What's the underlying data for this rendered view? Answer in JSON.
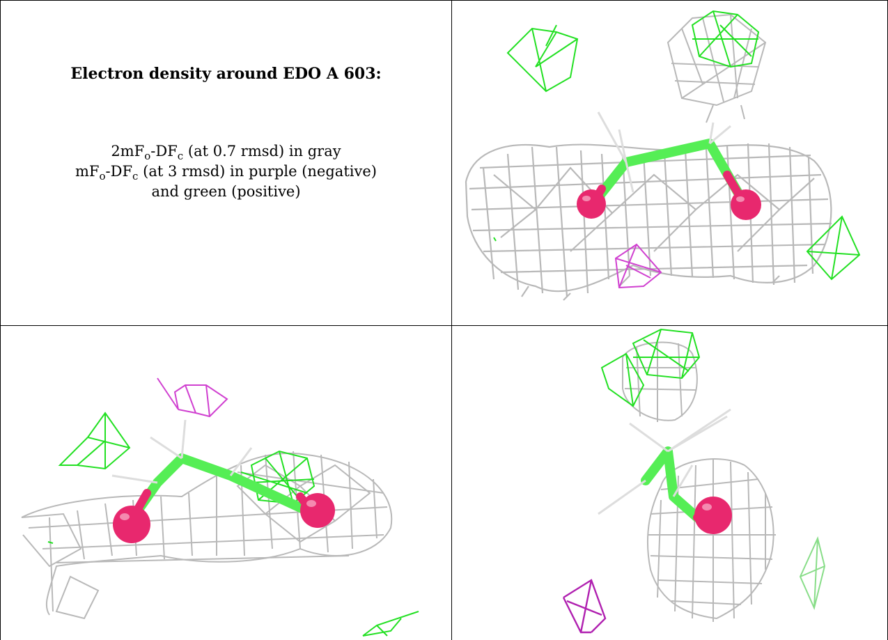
{
  "heading": "Electron density around EDO A 603:",
  "legend": {
    "line1": {
      "pre": "2mF",
      "sub1": "o",
      "mid": "-DF",
      "sub2": "c",
      "post": " (at 0.7 rmsd) in gray"
    },
    "line2": {
      "pre": "mF",
      "sub1": "o",
      "mid": "-DF",
      "sub2": "c",
      "post": " (at 3 rmsd) in purple (negative)"
    },
    "line3": "and green (positive)"
  },
  "colors": {
    "mesh_gray": "#b8b8b8",
    "mesh_green": "#22e022",
    "mesh_purple": "#d040d0",
    "carbon": "#55ee55",
    "oxygen": "#e8286e",
    "border": "#000000"
  },
  "views": [
    {
      "name": "view-top-right",
      "molecule": "EDO A 603"
    },
    {
      "name": "view-bottom-left",
      "molecule": "EDO A 603"
    },
    {
      "name": "view-bottom-right",
      "molecule": "EDO A 603"
    }
  ]
}
